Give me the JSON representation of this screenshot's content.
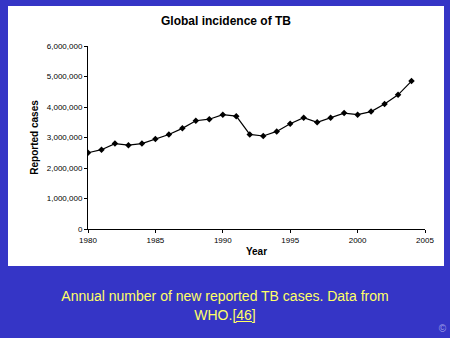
{
  "chart_data": {
    "type": "line",
    "title": "Global incidence of TB",
    "x_label": "Year",
    "y_label": "Reported cases",
    "x": [
      1980,
      1981,
      1982,
      1983,
      1984,
      1985,
      1986,
      1987,
      1988,
      1989,
      1990,
      1991,
      1992,
      1993,
      1994,
      1995,
      1996,
      1997,
      1998,
      1999,
      2000,
      2001,
      2002,
      2003,
      2004
    ],
    "values": [
      2500000,
      2600000,
      2800000,
      2750000,
      2800000,
      2950000,
      3100000,
      3300000,
      3550000,
      3600000,
      3750000,
      3700000,
      3100000,
      3050000,
      3200000,
      3450000,
      3650000,
      3500000,
      3650000,
      3800000,
      3750000,
      3850000,
      4100000,
      4400000,
      4850000
    ],
    "color": "#000000",
    "marker": "diamond",
    "line_style": "solid",
    "xlim": [
      1980,
      2005
    ],
    "xticks": [
      1980,
      1985,
      1990,
      1995,
      2000,
      2005
    ],
    "ylim": [
      0,
      6000000
    ],
    "yticks": [
      0,
      {
        "value": 1000000,
        "label": "1,000,000"
      },
      {
        "value": 2000000,
        "label": "2,000,000"
      },
      {
        "value": 3000000,
        "label": "3,000,000"
      },
      {
        "value": 4000000,
        "label": "4,000,000"
      },
      {
        "value": 5000000,
        "label": "5,000,000"
      },
      {
        "value": 6000000,
        "label": "6,000,000"
      }
    ],
    "grid": false
  },
  "caption": {
    "text": "Annual number of new reported TB cases. Data from WHO.",
    "link": "[46]"
  },
  "footer": "©"
}
